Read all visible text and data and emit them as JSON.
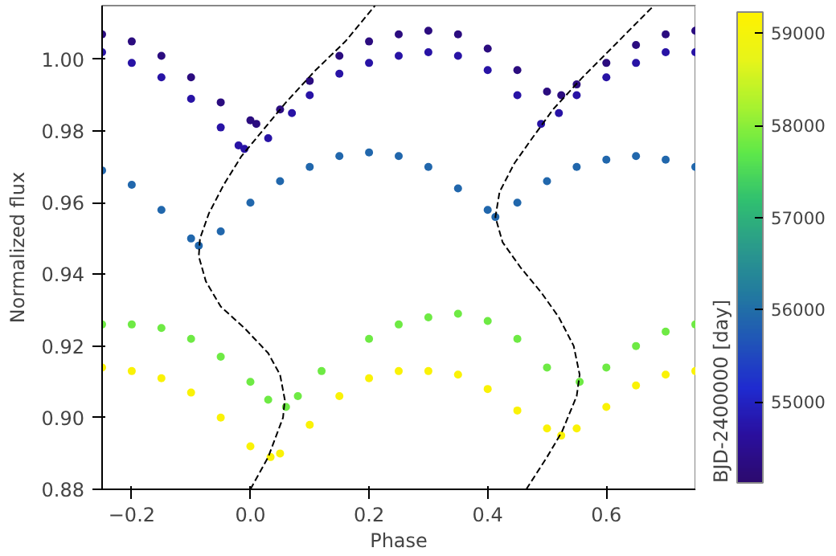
{
  "chart_data": {
    "type": "scatter",
    "xlabel": "Phase",
    "ylabel": "Normalized flux",
    "clabel": "BJD-2400000 [day]",
    "xlim": [
      -0.25,
      0.75
    ],
    "ylim": [
      0.88,
      1.015
    ],
    "xticks": [
      -0.2,
      {
        "value": 0.0,
        "label": "0.0"
      },
      0.2,
      0.4,
      0.6
    ],
    "yticks": [
      0.88,
      {
        "value": 0.9,
        "label": "0.90"
      },
      0.92,
      0.94,
      0.96,
      0.98,
      {
        "value": 1.0,
        "label": "1.00"
      }
    ],
    "clim": [
      54120,
      59230
    ],
    "cticks": [
      55000,
      56000,
      57000,
      58000,
      59000
    ],
    "grid": false,
    "marker": "circle",
    "series": [
      {
        "x": [
          -0.25,
          -0.2,
          -0.15,
          -0.1,
          -0.05,
          0.0,
          0.01,
          0.05,
          0.1,
          0.15,
          0.2,
          0.25,
          0.3,
          0.35,
          0.4,
          0.45,
          0.5,
          0.524,
          0.55,
          0.6,
          0.65,
          0.7,
          0.75
        ],
        "values": [
          1.007,
          1.005,
          1.001,
          0.995,
          0.988,
          0.983,
          0.982,
          0.986,
          0.994,
          1.001,
          1.005,
          1.007,
          1.008,
          1.007,
          1.003,
          0.997,
          0.991,
          0.99,
          0.993,
          0.999,
          1.004,
          1.007,
          1.008
        ],
        "cvalues": [
          54300,
          54300,
          54300,
          54300,
          54300,
          54300,
          54300,
          54300,
          54300,
          54300,
          54300,
          54300,
          54300,
          54300,
          54300,
          54300,
          54300,
          54300,
          54300,
          54300,
          54300,
          54300,
          54300
        ]
      },
      {
        "x": [
          -0.25,
          -0.2,
          -0.15,
          -0.1,
          -0.05,
          -0.02,
          -0.01,
          0.03,
          0.07,
          0.1,
          0.15,
          0.2,
          0.25,
          0.3,
          0.35,
          0.4,
          0.45,
          0.49,
          0.52,
          0.55,
          0.6,
          0.65,
          0.7,
          0.75
        ],
        "values": [
          1.002,
          0.999,
          0.995,
          0.989,
          0.981,
          0.976,
          0.975,
          0.978,
          0.985,
          0.99,
          0.996,
          0.999,
          1.001,
          1.002,
          1.001,
          0.997,
          0.99,
          0.982,
          0.985,
          0.99,
          0.995,
          0.999,
          1.002,
          1.002
        ],
        "cvalues": [
          54700,
          54700,
          54700,
          54700,
          54700,
          54700,
          54700,
          54700,
          54700,
          54700,
          54700,
          54700,
          54700,
          54700,
          54700,
          54700,
          54700,
          54700,
          54700,
          54700,
          54700,
          54700,
          54700,
          54700
        ]
      },
      {
        "x": [
          -0.25,
          -0.2,
          -0.15,
          -0.1,
          -0.087,
          -0.05,
          0.0,
          0.05,
          0.1,
          0.15,
          0.2,
          0.25,
          0.3,
          0.35,
          0.4,
          0.413,
          0.45,
          0.5,
          0.55,
          0.6,
          0.65,
          0.7,
          0.75
        ],
        "values": [
          0.969,
          0.965,
          0.958,
          0.95,
          0.948,
          0.952,
          0.96,
          0.966,
          0.97,
          0.973,
          0.974,
          0.973,
          0.97,
          0.964,
          0.958,
          0.956,
          0.96,
          0.966,
          0.97,
          0.972,
          0.973,
          0.972,
          0.97
        ],
        "cvalues": [
          55900,
          55900,
          55900,
          55900,
          55900,
          55900,
          55900,
          55900,
          55900,
          55900,
          55900,
          55900,
          55900,
          55900,
          55900,
          55900,
          55900,
          55900,
          55900,
          55900,
          55900,
          55900,
          55900
        ]
      },
      {
        "x": [
          -0.25,
          -0.2,
          -0.15,
          -0.1,
          -0.05,
          0.0,
          0.03,
          0.06,
          0.08,
          0.12,
          0.2,
          0.25,
          0.3,
          0.35,
          0.4,
          0.45,
          0.5,
          0.555,
          0.6,
          0.65,
          0.7,
          0.75
        ],
        "values": [
          0.926,
          0.926,
          0.925,
          0.922,
          0.917,
          0.91,
          0.905,
          0.903,
          0.906,
          0.913,
          0.922,
          0.926,
          0.928,
          0.929,
          0.927,
          0.922,
          0.914,
          0.91,
          0.914,
          0.92,
          0.924,
          0.926
        ],
        "cvalues": [
          57800,
          57800,
          57800,
          57800,
          57800,
          57800,
          57800,
          57800,
          57800,
          57800,
          57800,
          57800,
          57800,
          57800,
          57800,
          57800,
          57800,
          57800,
          57800,
          57800,
          57800,
          57800
        ]
      },
      {
        "x": [
          -0.25,
          -0.2,
          -0.15,
          -0.1,
          -0.05,
          0.0,
          0.034,
          0.05,
          0.1,
          0.15,
          0.2,
          0.25,
          0.3,
          0.35,
          0.4,
          0.45,
          0.5,
          0.524,
          0.55,
          0.6,
          0.65,
          0.7,
          0.75
        ],
        "values": [
          0.914,
          0.913,
          0.911,
          0.907,
          0.9,
          0.892,
          0.889,
          0.89,
          0.898,
          0.906,
          0.911,
          0.913,
          0.913,
          0.912,
          0.908,
          0.902,
          0.897,
          0.895,
          0.897,
          0.903,
          0.909,
          0.912,
          0.913
        ],
        "cvalues": [
          59100,
          59100,
          59100,
          59100,
          59100,
          59100,
          59100,
          59100,
          59100,
          59100,
          59100,
          59100,
          59100,
          59100,
          59100,
          59100,
          59100,
          59100,
          59100,
          59100,
          59100,
          59100,
          59100
        ]
      },
      {
        "type": "line",
        "marker": "none",
        "color": "#000000",
        "line_style": "dashed",
        "x": [
          0.0,
          0.03,
          0.055,
          0.058,
          0.05,
          0.03,
          -0.01,
          -0.05,
          -0.075,
          -0.087,
          -0.085,
          -0.07,
          -0.045,
          -0.015,
          0.02,
          0.06,
          0.11,
          0.16,
          0.21
        ],
        "values": [
          0.88,
          0.889,
          0.9,
          0.905,
          0.912,
          0.918,
          0.925,
          0.931,
          0.938,
          0.945,
          0.95,
          0.957,
          0.965,
          0.973,
          0.98,
          0.988,
          0.997,
          1.005,
          1.015
        ]
      },
      {
        "type": "line",
        "marker": "none",
        "color": "#000000",
        "line_style": "dashed",
        "x": [
          0.465,
          0.5,
          0.525,
          0.55,
          0.555,
          0.545,
          0.52,
          0.49,
          0.455,
          0.425,
          0.413,
          0.42,
          0.445,
          0.475,
          0.51,
          0.56,
          0.62,
          0.68
        ],
        "values": [
          0.88,
          0.889,
          0.896,
          0.906,
          0.912,
          0.92,
          0.928,
          0.935,
          0.942,
          0.949,
          0.956,
          0.963,
          0.971,
          0.978,
          0.986,
          0.995,
          1.005,
          1.015
        ]
      }
    ]
  }
}
